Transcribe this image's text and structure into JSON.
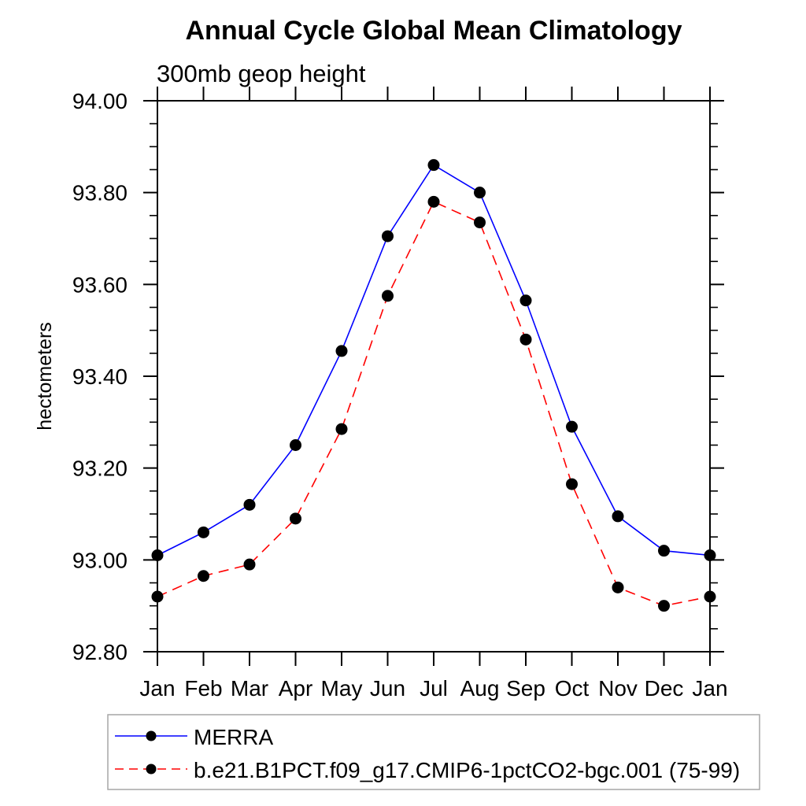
{
  "chart_data": {
    "type": "line",
    "title": "Annual Cycle Global Mean Climatology",
    "subtitle": "300mb geop height",
    "ylabel": "hectometers",
    "xlabel": "",
    "x_categories": [
      "Jan",
      "Feb",
      "Mar",
      "Apr",
      "May",
      "Jun",
      "Jul",
      "Aug",
      "Sep",
      "Oct",
      "Nov",
      "Dec",
      "Jan"
    ],
    "ylim": [
      92.8,
      94.0
    ],
    "ytick_step": 0.2,
    "yminor_step": 0.05,
    "ytick_labels": [
      "92.80",
      "93.00",
      "93.20",
      "93.40",
      "93.60",
      "93.80",
      "94.00"
    ],
    "grid": false,
    "frame": true,
    "legend_position": "bottom-left-outside-box",
    "series": [
      {
        "name": "MERRA",
        "color": "#0000ff",
        "line_style": "solid",
        "marker": "filled-circle",
        "marker_color": "#000000",
        "values": [
          93.01,
          93.06,
          93.12,
          93.25,
          93.455,
          93.705,
          93.86,
          93.8,
          93.565,
          93.29,
          93.095,
          93.02,
          93.01
        ]
      },
      {
        "name": "b.e21.B1PCT.f09_g17.CMIP6-1pctCO2-bgc.001 (75-99)",
        "color": "#ff0000",
        "line_style": "dashed",
        "marker": "filled-circle",
        "marker_color": "#000000",
        "values": [
          92.92,
          92.965,
          92.99,
          93.09,
          93.285,
          93.575,
          93.78,
          93.735,
          93.48,
          93.165,
          92.94,
          92.9,
          92.92
        ]
      }
    ],
    "colors": {
      "axis": "#000000",
      "legend_border": "#a6a6a6",
      "background": "#ffffff"
    }
  }
}
